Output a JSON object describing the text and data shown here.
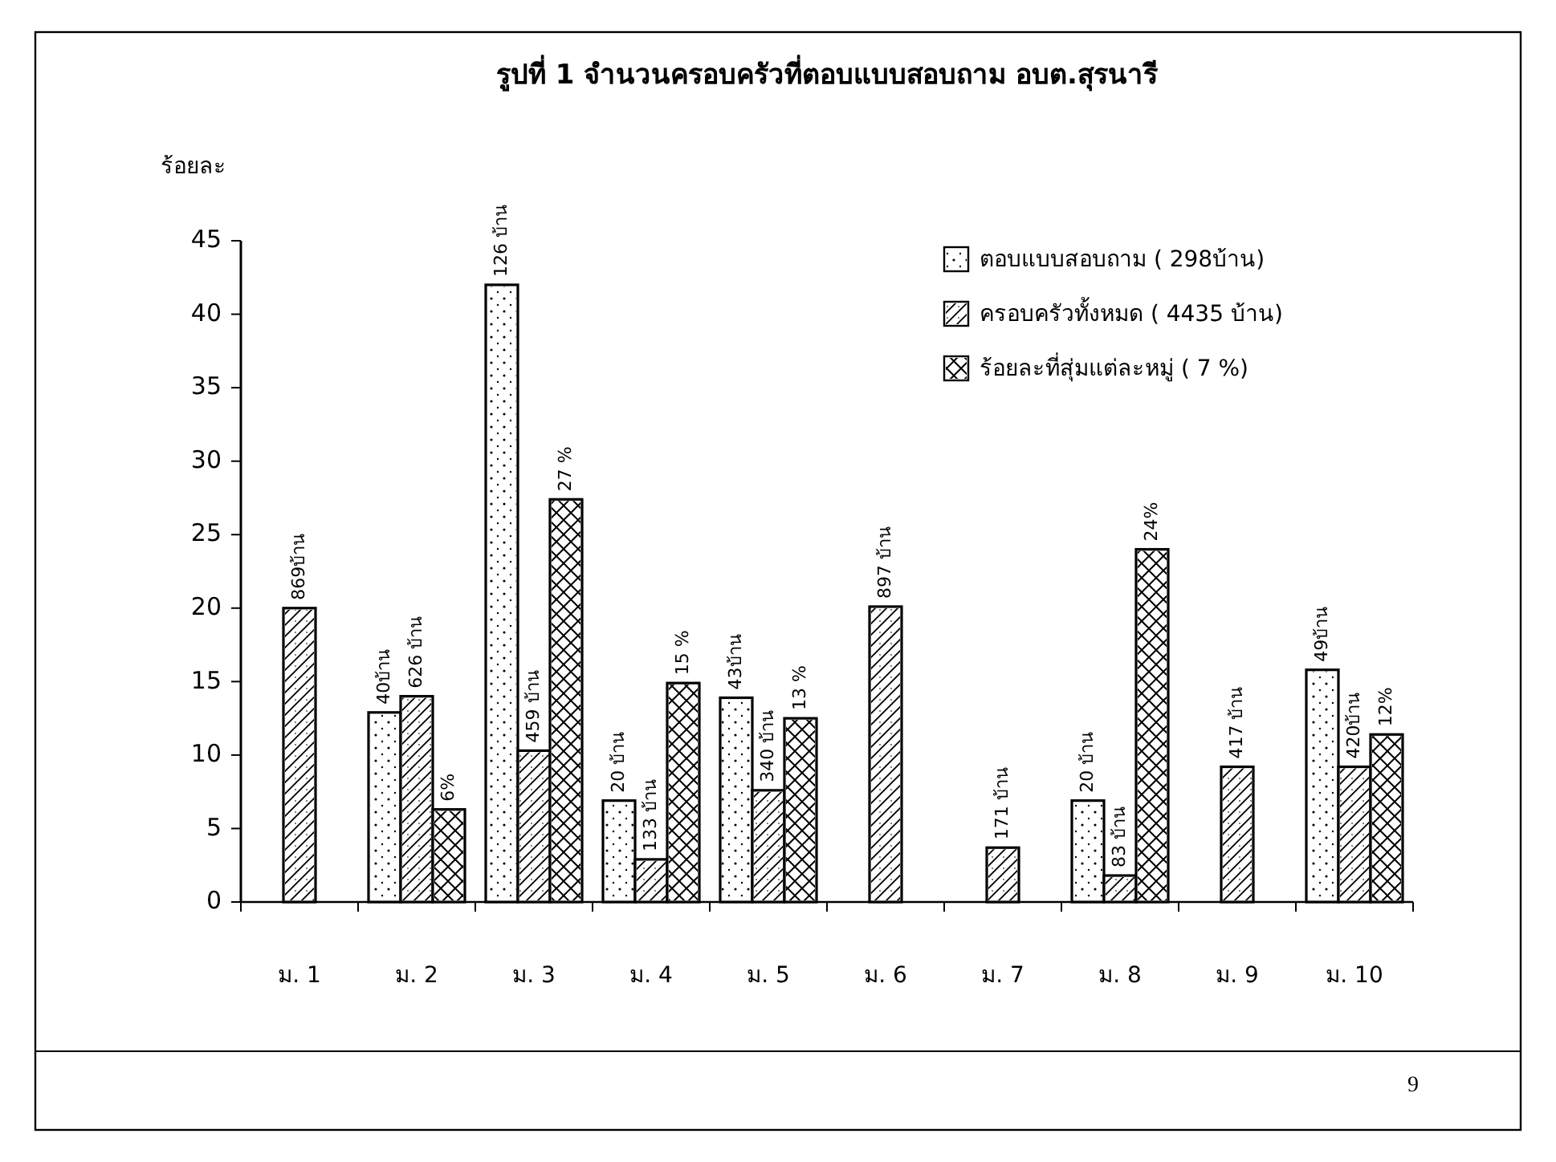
{
  "chart_data": {
    "type": "bar",
    "title": "รูปที่ 1  จำนวนครอบครัวที่ตอบแบบสอบถาม อบต.สุรนารี",
    "ylabel": "ร้อยละ",
    "categories": [
      "ม. 1",
      "ม. 2",
      "ม. 3",
      "ม. 4",
      "ม. 5",
      "ม. 6",
      "ม. 7",
      "ม. 8",
      "ม. 9",
      "ม. 10"
    ],
    "series": [
      {
        "name": "ตอบแบบสอบถาม    ( 298บ้าน)",
        "color": "#ffffff",
        "values": [
          0,
          12.9,
          42,
          6.9,
          13.9,
          0,
          0,
          6.9,
          0,
          15.8
        ]
      },
      {
        "name": "ครอบครัวทั้งหมด    ( 4435 บ้าน)",
        "color": "#ffffff",
        "values": [
          20,
          14,
          10.3,
          2.9,
          7.6,
          20.1,
          3.7,
          1.8,
          9.2,
          9.2
        ]
      },
      {
        "name": "ร้อยละที่สุ่มแต่ละหมู่    ( 7 %)",
        "color": "#ffffff",
        "values": [
          0,
          6.3,
          27.4,
          14.9,
          12.5,
          0,
          0,
          24,
          0,
          11.4
        ]
      }
    ],
    "ylim": [
      0,
      45
    ],
    "yticks": [
      0,
      5,
      10,
      15,
      20,
      25,
      30,
      35,
      40,
      45
    ],
    "legend": "top right",
    "grid": false,
    "annotations": [
      {
        "text": "869บ้าน",
        "x": "ม. 1",
        "y": 20
      },
      "40บ้าน",
      {
        "text": "626 บ้าน",
        "x": "ม. 2",
        "y": 14
      },
      "6%",
      "126 บ้าน",
      {
        "text": "459 บ้าน",
        "x": "ม. 3",
        "y": 10.3
      },
      "27 %",
      "20 บ้าน",
      {
        "text": "133 บ้าน",
        "x": "ม. 4",
        "y": 2.9
      },
      "15 %",
      "43บ้าน",
      {
        "text": "340 บ้าน",
        "x": "ม. 5",
        "y": 7.6
      },
      "13 %",
      {
        "text": "897 บ้าน",
        "x": "ม. 6",
        "y": 20.1
      },
      {
        "text": "171 บ้าน",
        "x": "ม. 7",
        "y": 3.7
      },
      "20 บ้าน",
      {
        "text": "83 บ้าน",
        "x": "ม. 8",
        "y": 1.8
      },
      "24%",
      {
        "text": "417 บ้าน",
        "x": "ม. 9",
        "y": 9.2
      },
      "49บ้าน",
      {
        "text": "420บ้าน",
        "x": "ม. 10",
        "y": 9.2
      },
      "12%",
      "9"
    ]
  }
}
